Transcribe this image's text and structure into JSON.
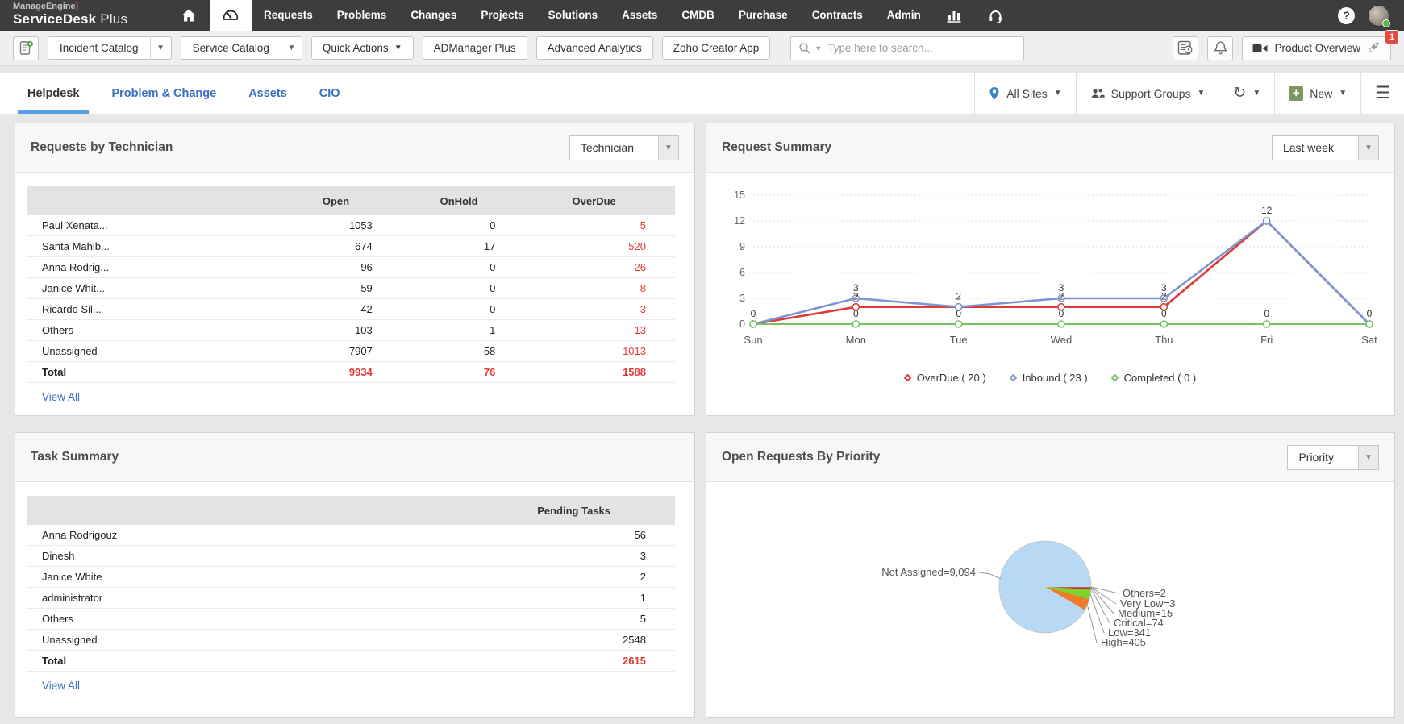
{
  "topnav": {
    "brand_small": "ManageEngine",
    "brand_bold": "ServiceDesk",
    "brand_light": "Plus",
    "items": [
      "Requests",
      "Problems",
      "Changes",
      "Projects",
      "Solutions",
      "Assets",
      "CMDB",
      "Purchase",
      "Contracts",
      "Admin"
    ]
  },
  "toolbar": {
    "incident_catalog": "Incident Catalog",
    "service_catalog": "Service Catalog",
    "quick_actions": "Quick Actions",
    "admanager_plus": "ADManager Plus",
    "advanced_analytics": "Advanced Analytics",
    "zoho_creator_app": "Zoho Creator App",
    "search_placeholder": "Type here to search...",
    "product_overview": "Product Overview",
    "notification_badge": "1"
  },
  "tabs": {
    "items": [
      {
        "label": "Helpdesk",
        "active": true
      },
      {
        "label": "Problem & Change",
        "active": false
      },
      {
        "label": "Assets",
        "active": false
      },
      {
        "label": "CIO",
        "active": false
      }
    ],
    "all_sites": "All Sites",
    "support_groups": "Support Groups",
    "new_label": "New"
  },
  "requests_by_technician": {
    "title": "Requests by Technician",
    "filter_value": "Technician",
    "columns": [
      "Open",
      "OnHold",
      "OverDue"
    ],
    "rows": [
      {
        "name": "Paul Xenata...",
        "open": "1053",
        "onhold": "0",
        "overdue": "5"
      },
      {
        "name": "Santa Mahib...",
        "open": "674",
        "onhold": "17",
        "overdue": "520"
      },
      {
        "name": "Anna Rodrig...",
        "open": "96",
        "onhold": "0",
        "overdue": "26"
      },
      {
        "name": "Janice Whit...",
        "open": "59",
        "onhold": "0",
        "overdue": "8"
      },
      {
        "name": "Ricardo Sil...",
        "open": "42",
        "onhold": "0",
        "overdue": "3"
      },
      {
        "name": "Others",
        "open": "103",
        "onhold": "1",
        "overdue": "13"
      },
      {
        "name": "Unassigned",
        "open": "7907",
        "onhold": "58",
        "overdue": "1013"
      },
      {
        "name": "Total",
        "open": "9934",
        "onhold": "76",
        "overdue": "1588",
        "is_total": true
      }
    ],
    "view_all": "View All"
  },
  "request_summary": {
    "title": "Request Summary",
    "filter_value": "Last week",
    "chart_data": {
      "type": "line",
      "x": [
        "Sun",
        "Mon",
        "Tue",
        "Wed",
        "Thu",
        "Fri",
        "Sat"
      ],
      "series": [
        {
          "name": "OverDue",
          "total": 20,
          "color": "#dd3b34",
          "values": [
            0,
            2,
            2,
            2,
            2,
            12,
            0
          ]
        },
        {
          "name": "Inbound",
          "total": 23,
          "color": "#7d96d2",
          "values": [
            0,
            3,
            2,
            3,
            3,
            12,
            0
          ]
        },
        {
          "name": "Completed",
          "total": 0,
          "color": "#74c365",
          "values": [
            0,
            0,
            0,
            0,
            0,
            0,
            0
          ]
        }
      ],
      "ylim": [
        0,
        15
      ],
      "yticks": [
        0,
        3,
        6,
        9,
        12,
        15
      ],
      "legend": [
        "OverDue ( 20 )",
        "Inbound ( 23 )",
        "Completed ( 0 )"
      ],
      "legend_position": "bottom",
      "grid": true
    }
  },
  "task_summary": {
    "title": "Task Summary",
    "column": "Pending Tasks",
    "rows": [
      {
        "name": "Anna Rodrigouz",
        "value": "56"
      },
      {
        "name": "Dinesh",
        "value": "3"
      },
      {
        "name": "Janice White",
        "value": "2"
      },
      {
        "name": "administrator",
        "value": "1"
      },
      {
        "name": "Others",
        "value": "5"
      },
      {
        "name": "Unassigned",
        "value": "2548"
      },
      {
        "name": "Total",
        "value": "2615",
        "is_total": true
      }
    ],
    "view_all": "View All"
  },
  "open_requests_by_priority": {
    "title": "Open Requests By Priority",
    "filter_value": "Priority",
    "chart_data": {
      "type": "pie",
      "total": 9934,
      "start_angle": "right",
      "direction": "clockwise",
      "slices": [
        {
          "label": "Others=2",
          "value": 2,
          "color": "#8f8f8f"
        },
        {
          "label": "Very Low=3",
          "value": 3,
          "color": "#4a4ad0"
        },
        {
          "label": "Medium=15",
          "value": 15,
          "color": "#b34fb3"
        },
        {
          "label": "Critical=74",
          "value": 74,
          "color": "#cc2e2e"
        },
        {
          "label": "Low=341",
          "value": 341,
          "color": "#7fd32a"
        },
        {
          "label": "High=405",
          "value": 405,
          "color": "#ef7c2a"
        },
        {
          "label": "Not Assigned=9,094",
          "value": 9094,
          "color": "#b7d9f3"
        }
      ]
    }
  },
  "colors": {
    "topbar": "#3d3d3d",
    "accent_red": "#e03a35",
    "link_blue": "#3a6fc0",
    "tab_underline": "#55a0e4"
  }
}
